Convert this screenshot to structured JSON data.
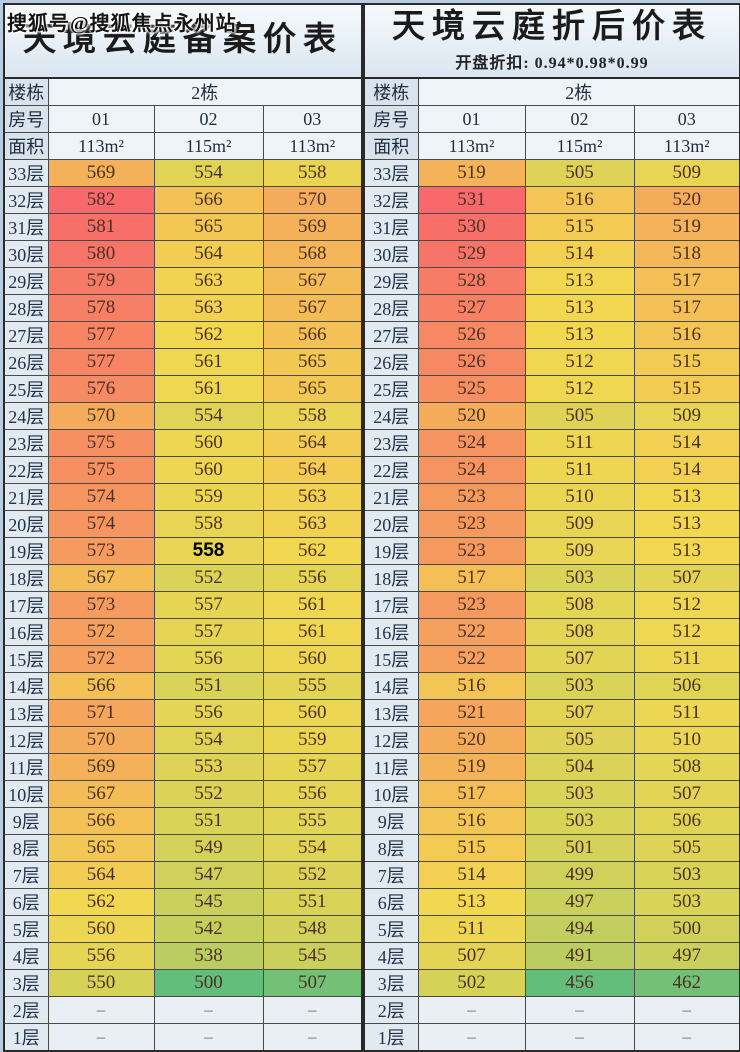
{
  "watermark": "搜狐号@搜狐焦点永州站",
  "colorscale": {
    "min_color": "#63be7b",
    "mid_color": "#f2d750",
    "max_color": "#f8696b",
    "empty_color": "#e9eff5"
  },
  "chart_data": [
    {
      "type": "heatmap-table",
      "title": "天境云庭备案价表",
      "subtitle": "",
      "header": {
        "building_label": "楼栋",
        "building_value": "2栋",
        "room_label": "房号",
        "rooms": [
          "01",
          "02",
          "03"
        ],
        "area_label": "面积",
        "areas": [
          "113m²",
          "115m²",
          "113m²"
        ]
      },
      "bold_cell": {
        "row_index": 14,
        "col_index": 1
      },
      "rows": [
        {
          "floor": "33层",
          "prices": [
            569,
            554,
            558
          ]
        },
        {
          "floor": "32层",
          "prices": [
            582,
            566,
            570
          ]
        },
        {
          "floor": "31层",
          "prices": [
            581,
            565,
            569
          ]
        },
        {
          "floor": "30层",
          "prices": [
            580,
            564,
            568
          ]
        },
        {
          "floor": "29层",
          "prices": [
            579,
            563,
            567
          ]
        },
        {
          "floor": "28层",
          "prices": [
            578,
            563,
            567
          ]
        },
        {
          "floor": "27层",
          "prices": [
            577,
            562,
            566
          ]
        },
        {
          "floor": "26层",
          "prices": [
            577,
            561,
            565
          ]
        },
        {
          "floor": "25层",
          "prices": [
            576,
            561,
            565
          ]
        },
        {
          "floor": "24层",
          "prices": [
            570,
            554,
            558
          ]
        },
        {
          "floor": "23层",
          "prices": [
            575,
            560,
            564
          ]
        },
        {
          "floor": "22层",
          "prices": [
            575,
            560,
            564
          ]
        },
        {
          "floor": "21层",
          "prices": [
            574,
            559,
            563
          ]
        },
        {
          "floor": "20层",
          "prices": [
            574,
            558,
            563
          ]
        },
        {
          "floor": "19层",
          "prices": [
            573,
            558,
            562
          ]
        },
        {
          "floor": "18层",
          "prices": [
            567,
            552,
            556
          ]
        },
        {
          "floor": "17层",
          "prices": [
            573,
            557,
            561
          ]
        },
        {
          "floor": "16层",
          "prices": [
            572,
            557,
            561
          ]
        },
        {
          "floor": "15层",
          "prices": [
            572,
            556,
            560
          ]
        },
        {
          "floor": "14层",
          "prices": [
            566,
            551,
            555
          ]
        },
        {
          "floor": "13层",
          "prices": [
            571,
            556,
            560
          ]
        },
        {
          "floor": "12层",
          "prices": [
            570,
            554,
            559
          ]
        },
        {
          "floor": "11层",
          "prices": [
            569,
            553,
            557
          ]
        },
        {
          "floor": "10层",
          "prices": [
            567,
            552,
            556
          ]
        },
        {
          "floor": "9层",
          "prices": [
            566,
            551,
            555
          ]
        },
        {
          "floor": "8层",
          "prices": [
            565,
            549,
            554
          ]
        },
        {
          "floor": "7层",
          "prices": [
            564,
            547,
            552
          ]
        },
        {
          "floor": "6层",
          "prices": [
            562,
            545,
            551
          ]
        },
        {
          "floor": "5层",
          "prices": [
            560,
            542,
            548
          ]
        },
        {
          "floor": "4层",
          "prices": [
            556,
            538,
            545
          ]
        },
        {
          "floor": "3层",
          "prices": [
            550,
            500,
            507
          ]
        },
        {
          "floor": "2层",
          "prices": [
            "–",
            "–",
            "–"
          ]
        },
        {
          "floor": "1层",
          "prices": [
            "–",
            "–",
            "–"
          ]
        }
      ]
    },
    {
      "type": "heatmap-table",
      "title": "天境云庭折后价表",
      "subtitle": "开盘折扣: 0.94*0.98*0.99",
      "header": {
        "building_label": "楼栋",
        "building_value": "2栋",
        "room_label": "房号",
        "rooms": [
          "01",
          "02",
          "03"
        ],
        "area_label": "面积",
        "areas": [
          "113m²",
          "115m²",
          "113m²"
        ]
      },
      "bold_cell": null,
      "rows": [
        {
          "floor": "33层",
          "prices": [
            519,
            505,
            509
          ]
        },
        {
          "floor": "32层",
          "prices": [
            531,
            516,
            520
          ]
        },
        {
          "floor": "31层",
          "prices": [
            530,
            515,
            519
          ]
        },
        {
          "floor": "30层",
          "prices": [
            529,
            514,
            518
          ]
        },
        {
          "floor": "29层",
          "prices": [
            528,
            513,
            517
          ]
        },
        {
          "floor": "28层",
          "prices": [
            527,
            513,
            517
          ]
        },
        {
          "floor": "27层",
          "prices": [
            526,
            513,
            516
          ]
        },
        {
          "floor": "26层",
          "prices": [
            526,
            512,
            515
          ]
        },
        {
          "floor": "25层",
          "prices": [
            525,
            512,
            515
          ]
        },
        {
          "floor": "24层",
          "prices": [
            520,
            505,
            509
          ]
        },
        {
          "floor": "23层",
          "prices": [
            524,
            511,
            514
          ]
        },
        {
          "floor": "22层",
          "prices": [
            524,
            511,
            514
          ]
        },
        {
          "floor": "21层",
          "prices": [
            523,
            510,
            513
          ]
        },
        {
          "floor": "20层",
          "prices": [
            523,
            509,
            513
          ]
        },
        {
          "floor": "19层",
          "prices": [
            523,
            509,
            513
          ]
        },
        {
          "floor": "18层",
          "prices": [
            517,
            503,
            507
          ]
        },
        {
          "floor": "17层",
          "prices": [
            523,
            508,
            512
          ]
        },
        {
          "floor": "16层",
          "prices": [
            522,
            508,
            512
          ]
        },
        {
          "floor": "15层",
          "prices": [
            522,
            507,
            511
          ]
        },
        {
          "floor": "14层",
          "prices": [
            516,
            503,
            506
          ]
        },
        {
          "floor": "13层",
          "prices": [
            521,
            507,
            511
          ]
        },
        {
          "floor": "12层",
          "prices": [
            520,
            505,
            510
          ]
        },
        {
          "floor": "11层",
          "prices": [
            519,
            504,
            508
          ]
        },
        {
          "floor": "10层",
          "prices": [
            517,
            503,
            507
          ]
        },
        {
          "floor": "9层",
          "prices": [
            516,
            503,
            506
          ]
        },
        {
          "floor": "8层",
          "prices": [
            515,
            501,
            505
          ]
        },
        {
          "floor": "7层",
          "prices": [
            514,
            499,
            503
          ]
        },
        {
          "floor": "6层",
          "prices": [
            513,
            497,
            503
          ]
        },
        {
          "floor": "5层",
          "prices": [
            511,
            494,
            500
          ]
        },
        {
          "floor": "4层",
          "prices": [
            507,
            491,
            497
          ]
        },
        {
          "floor": "3层",
          "prices": [
            502,
            456,
            462
          ]
        },
        {
          "floor": "2层",
          "prices": [
            "–",
            "–",
            "–"
          ]
        },
        {
          "floor": "1层",
          "prices": [
            "–",
            "–",
            "–"
          ]
        }
      ]
    }
  ]
}
